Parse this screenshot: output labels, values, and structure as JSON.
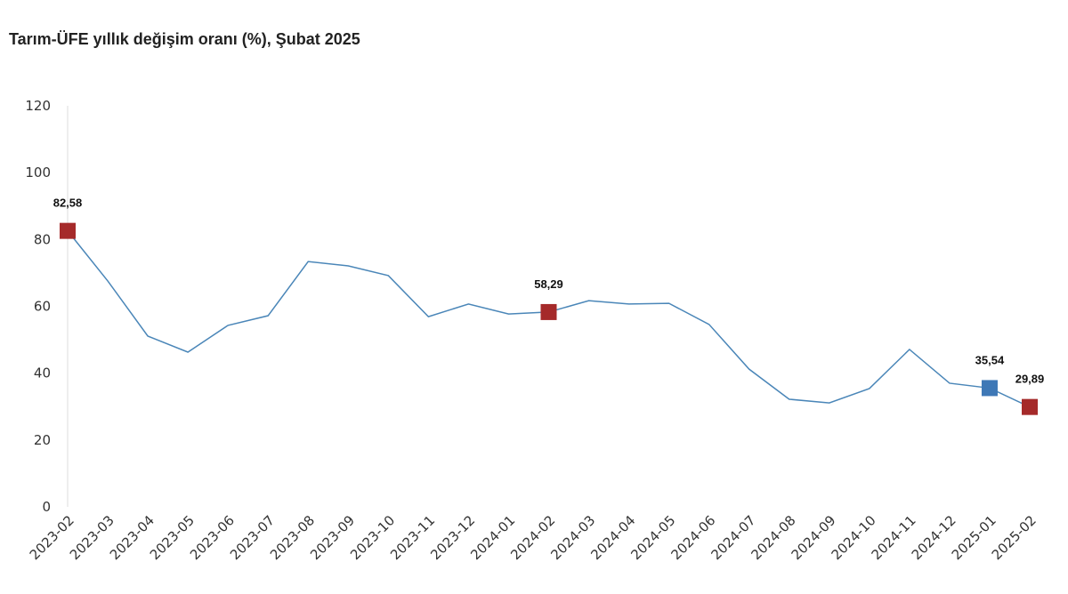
{
  "chart_data": {
    "type": "line",
    "title": "Tarım-ÜFE yıllık değişim oranı (%), Şubat 2025",
    "xlabel": "",
    "ylabel": "",
    "ylim": [
      0,
      120
    ],
    "yticks": [
      0,
      20,
      40,
      60,
      80,
      100,
      120
    ],
    "grid": false,
    "categories": [
      "2023-02",
      "2023-03",
      "2023-04",
      "2023-05",
      "2023-06",
      "2023-07",
      "2023-08",
      "2023-09",
      "2023-10",
      "2023-11",
      "2023-12",
      "2024-01",
      "2024-02",
      "2024-03",
      "2024-04",
      "2024-05",
      "2024-06",
      "2024-07",
      "2024-08",
      "2024-09",
      "2024-10",
      "2024-11",
      "2024-12",
      "2025-01",
      "2025-02"
    ],
    "values": [
      82.58,
      67.6,
      51.1,
      46.3,
      54.3,
      57.2,
      73.4,
      72.1,
      69.2,
      56.9,
      60.7,
      57.7,
      58.29,
      61.7,
      60.7,
      60.9,
      54.6,
      41.2,
      32.2,
      31.1,
      35.4,
      47.1,
      37.0,
      35.54,
      29.89
    ],
    "line_color": "#4a86b8",
    "highlights": [
      {
        "category": "2023-02",
        "label": "82,58",
        "color": "#a52a2a"
      },
      {
        "category": "2024-02",
        "label": "58,29",
        "color": "#a52a2a"
      },
      {
        "category": "2025-01",
        "label": "35,54",
        "color": "#3e78b6"
      },
      {
        "category": "2025-02",
        "label": "29,89",
        "color": "#a52a2a"
      }
    ]
  }
}
